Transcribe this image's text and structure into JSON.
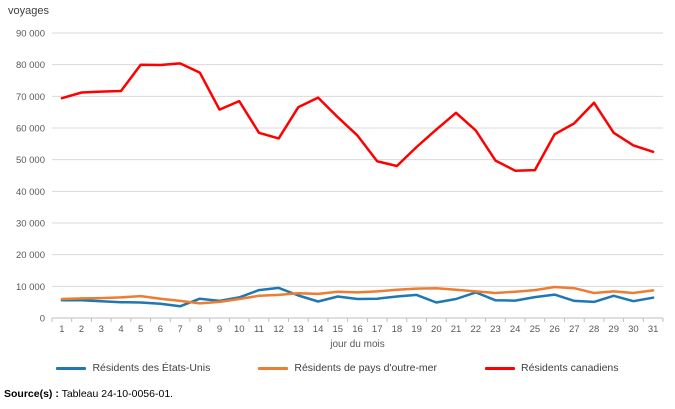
{
  "chart": {
    "ylabel_text": "voyages",
    "xlabel_text": "jour du mois"
  },
  "source": {
    "bold": "Source(s) :",
    "text": " Tableau 24-10-0056-01."
  },
  "chart_data": {
    "type": "line",
    "title": "",
    "ylabel": "voyages",
    "xlabel": "jour du mois",
    "x": [
      1,
      2,
      3,
      4,
      5,
      6,
      7,
      8,
      9,
      10,
      11,
      12,
      13,
      14,
      15,
      16,
      17,
      18,
      19,
      20,
      21,
      22,
      23,
      24,
      25,
      26,
      27,
      28,
      29,
      30,
      31
    ],
    "ylim": [
      0,
      90000
    ],
    "ytick_step": 10000,
    "ytick_labels": [
      "0",
      "10 000",
      "20 000",
      "30 000",
      "40 000",
      "50 000",
      "60 000",
      "70 000",
      "80 000",
      "90 000"
    ],
    "grid": "horizontal",
    "legend_position": "bottom",
    "colors": {
      "grid": "#D9D9D9",
      "axis": "#BFBFBF",
      "tick_text": "#595959"
    },
    "series": [
      {
        "name": "Résidents des États-Unis",
        "color": "#1F77B4",
        "values": [
          5600,
          5600,
          5300,
          5000,
          4900,
          4500,
          3700,
          6100,
          5400,
          6500,
          8800,
          9500,
          7100,
          5200,
          6800,
          6000,
          6100,
          6800,
          7300,
          4900,
          6000,
          8100,
          5600,
          5500,
          6600,
          7400,
          5400,
          5100,
          7000,
          5300,
          6400
        ]
      },
      {
        "name": "Résidents de pays d'outre-mer",
        "color": "#ED7D31",
        "values": [
          6000,
          6200,
          6300,
          6500,
          6900,
          6100,
          5400,
          4600,
          5100,
          6000,
          7000,
          7300,
          7800,
          7600,
          8300,
          8100,
          8400,
          8900,
          9300,
          9400,
          8900,
          8400,
          7900,
          8300,
          8800,
          9800,
          9400,
          7900,
          8400,
          7900,
          8700
        ]
      },
      {
        "name": "Résidents canadiens",
        "color": "#FF0000",
        "values": [
          69400,
          71200,
          71500,
          71700,
          80000,
          79900,
          80400,
          77500,
          65800,
          68500,
          58500,
          56700,
          66600,
          69600,
          63400,
          57600,
          49500,
          48000,
          54000,
          59500,
          64800,
          59200,
          49700,
          46500,
          46700,
          58000,
          61500,
          68000,
          58500,
          54500,
          52500
        ]
      }
    ]
  }
}
